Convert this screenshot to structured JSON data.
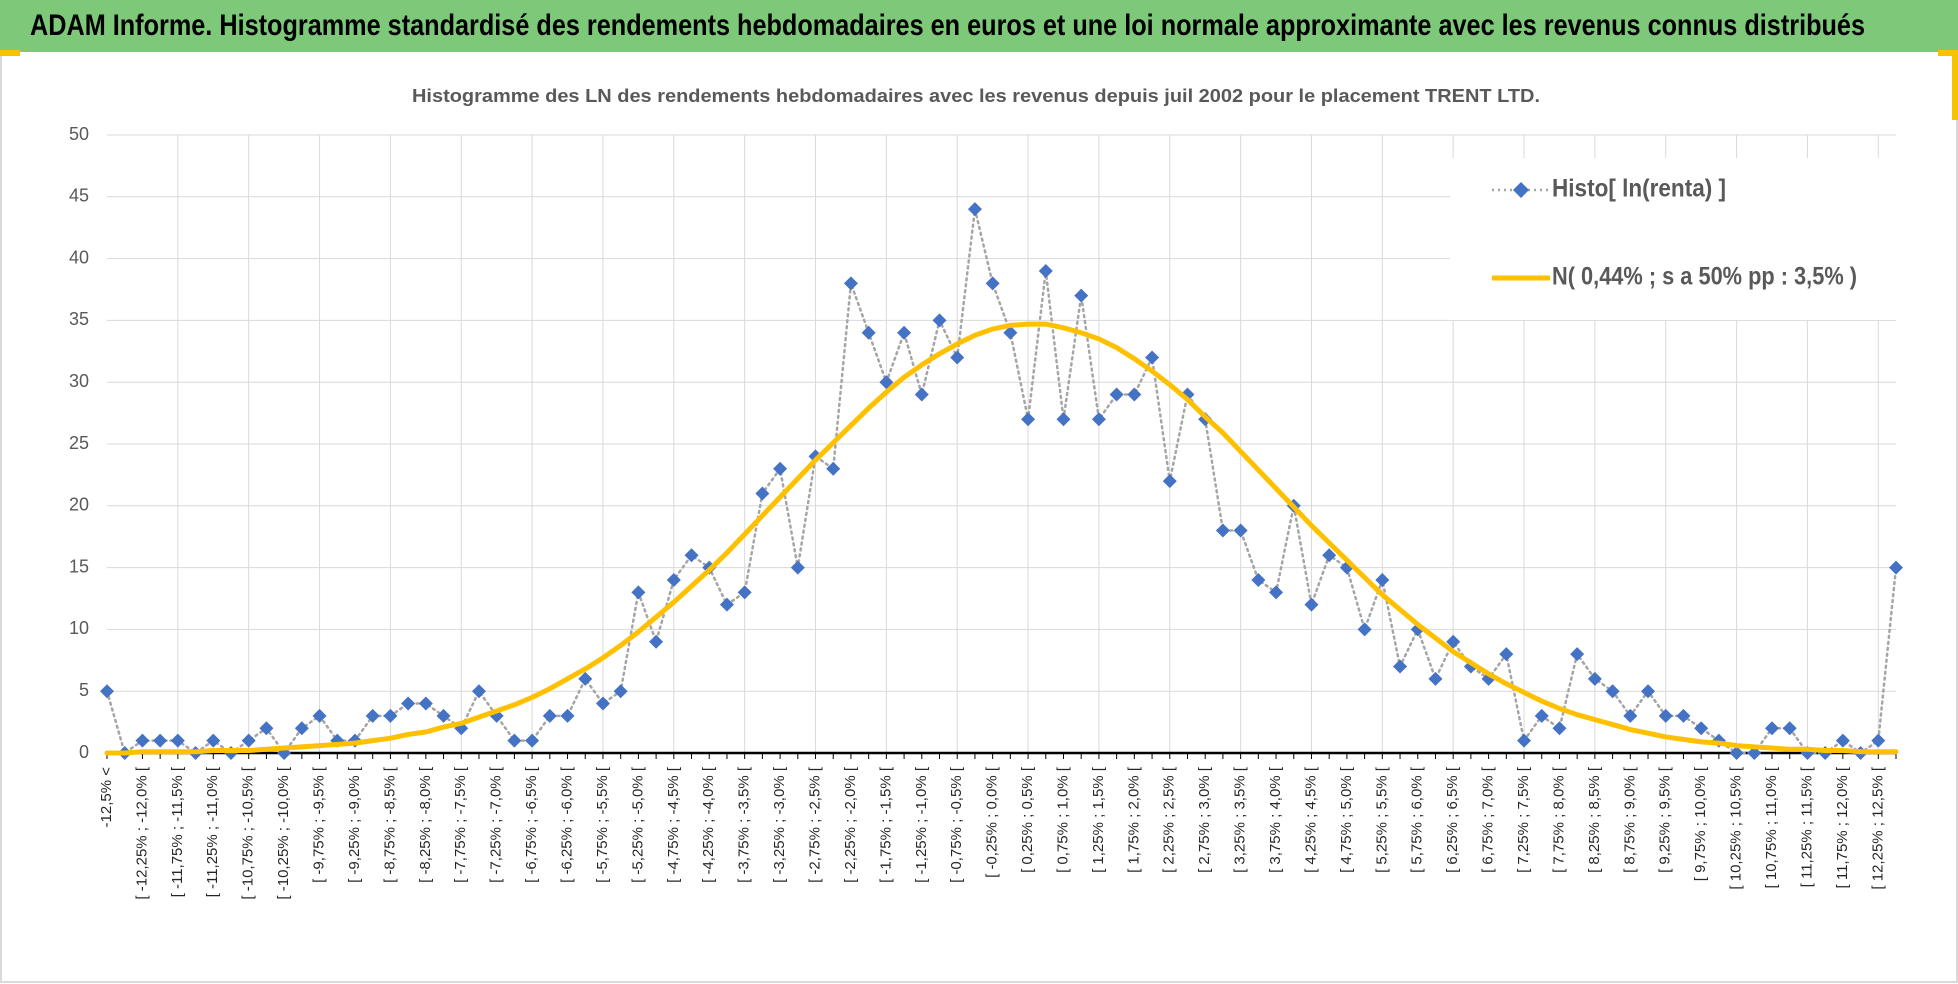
{
  "header": {
    "title": "ADAM Informe. Histogramme standardisé des rendements hebdomadaires en euros et une loi normale approximante avec les revenus connus distribués"
  },
  "chart_data": {
    "type": "line",
    "title": "Histogramme  des LN des rendements hebdomadaires avec les revenus depuis juil 2002 pour le placement TRENT LTD.",
    "categories": [
      "-12,5% <",
      null,
      "[ -12,25% ; -12,0% [",
      null,
      "[ -11,75% ; -11,5% [",
      null,
      "[ -11,25% ; -11,0% [",
      null,
      "[ -10,75% ; -10,5% [",
      null,
      "[ -10,25% ; -10,0% [",
      null,
      "[ -9,75% ; -9,5% [",
      null,
      "[ -9,25% ; -9,0% [",
      null,
      "[ -8,75% ; -8,5% [",
      null,
      "[ -8,25% ; -8,0% [",
      null,
      "[ -7,75% ; -7,5% [",
      null,
      "[ -7,25% ; -7,0% [",
      null,
      "[ -6,75% ; -6,5% [",
      null,
      "[ -6,25% ; -6,0% [",
      null,
      "[ -5,75% ; -5,5% [",
      null,
      "[ -5,25% ; -5,0% [",
      null,
      "[ -4,75% ; -4,5% [",
      null,
      "[ -4,25% ; -4,0% [",
      null,
      "[ -3,75% ; -3,5% [",
      null,
      "[ -3,25% ; -3,0% [",
      null,
      "[ -2,75% ; -2,5% [",
      null,
      "[ -2,25% ; -2,0% [",
      null,
      "[ -1,75% ; -1,5% [",
      null,
      "[ -1,25% ; -1,0% [",
      null,
      "[ -0,75% ; -0,5% [",
      null,
      "[ -0,25% ; 0,0% [",
      null,
      "[ 0,25% ; 0,5% [",
      null,
      "[ 0,75% ; 1,0% [",
      null,
      "[ 1,25% ; 1,5% [",
      null,
      "[ 1,75% ; 2,0% [",
      null,
      "[ 2,25% ; 2,5% [",
      null,
      "[ 2,75% ; 3,0% [",
      null,
      "[ 3,25% ; 3,5% [",
      null,
      "[ 3,75% ; 4,0% [",
      null,
      "[ 4,25% ; 4,5% [",
      null,
      "[ 4,75% ; 5,0% [",
      null,
      "[ 5,25% ; 5,5% [",
      null,
      "[ 5,75% ; 6,0% [",
      null,
      "[ 6,25% ; 6,5% [",
      null,
      "[ 6,75% ; 7,0% [",
      null,
      "[ 7,25% ; 7,5% [",
      null,
      "[ 7,75% ; 8,0% [",
      null,
      "[ 8,25% ; 8,5% [",
      null,
      "[ 8,75% ; 9,0% [",
      null,
      "[ 9,25% ; 9,5% [",
      null,
      "[ 9,75% ; 10,0% [",
      null,
      "[ 10,25% ; 10,5% [",
      null,
      "[ 10,75% ; 11,0% [",
      null,
      "[ 11,25% ; 11,5% [",
      null,
      "[ 11,75% ; 12,0% [",
      null,
      "[ 12,25% ; 12,5% [",
      null
    ],
    "series": [
      {
        "name": "Histo[ ln(renta) ]",
        "color": "#4472c4",
        "marker": "diamond",
        "line_color": "#a5a5a5",
        "line_style": "dotted",
        "values": [
          5,
          0,
          1,
          1,
          1,
          0,
          1,
          0,
          1,
          2,
          0,
          2,
          3,
          1,
          1,
          3,
          3,
          4,
          4,
          3,
          2,
          5,
          3,
          1,
          1,
          3,
          3,
          6,
          4,
          5,
          13,
          9,
          14,
          16,
          15,
          12,
          13,
          21,
          23,
          15,
          24,
          23,
          38,
          34,
          30,
          34,
          29,
          35,
          32,
          44,
          38,
          34,
          27,
          39,
          27,
          37,
          27,
          29,
          29,
          32,
          22,
          29,
          27,
          18,
          18,
          14,
          13,
          20,
          12,
          16,
          15,
          10,
          14,
          7,
          10,
          6,
          9,
          7,
          6,
          8,
          1,
          3,
          2,
          8,
          6,
          5,
          3,
          5,
          3,
          3,
          2,
          1,
          0,
          0,
          2,
          2,
          0,
          0,
          1,
          0,
          1,
          15
        ]
      },
      {
        "name": "N( 0,44% ; s a 50% pp : 3,5% )",
        "color": "#ffc000",
        "values": [
          0.0,
          0.0,
          0.1,
          0.1,
          0.1,
          0.1,
          0.2,
          0.2,
          0.2,
          0.3,
          0.4,
          0.5,
          0.6,
          0.7,
          0.8,
          1.0,
          1.2,
          1.5,
          1.7,
          2.1,
          2.4,
          2.9,
          3.4,
          3.9,
          4.5,
          5.2,
          6.0,
          6.8,
          7.7,
          8.7,
          9.8,
          11.0,
          12.2,
          13.5,
          14.8,
          16.2,
          17.7,
          19.2,
          20.7,
          22.2,
          23.7,
          25.1,
          26.5,
          27.9,
          29.2,
          30.4,
          31.4,
          32.3,
          33.1,
          33.8,
          34.3,
          34.6,
          34.7,
          34.7,
          34.4,
          34.0,
          33.5,
          32.8,
          31.9,
          30.9,
          29.8,
          28.6,
          27.2,
          25.9,
          24.4,
          22.9,
          21.4,
          19.9,
          18.4,
          17.0,
          15.6,
          14.2,
          12.8,
          11.6,
          10.4,
          9.3,
          8.2,
          7.3,
          6.4,
          5.6,
          4.9,
          4.2,
          3.6,
          3.1,
          2.7,
          2.3,
          1.9,
          1.6,
          1.3,
          1.1,
          0.9,
          0.8,
          0.6,
          0.5,
          0.4,
          0.3,
          0.3,
          0.2,
          0.2,
          0.1,
          0.1,
          0.1
        ]
      }
    ],
    "ylim": [
      0,
      50
    ],
    "yticks": [
      0,
      5,
      10,
      15,
      20,
      25,
      30,
      35,
      40,
      45,
      50
    ],
    "grid": true,
    "legend": "top-right"
  }
}
